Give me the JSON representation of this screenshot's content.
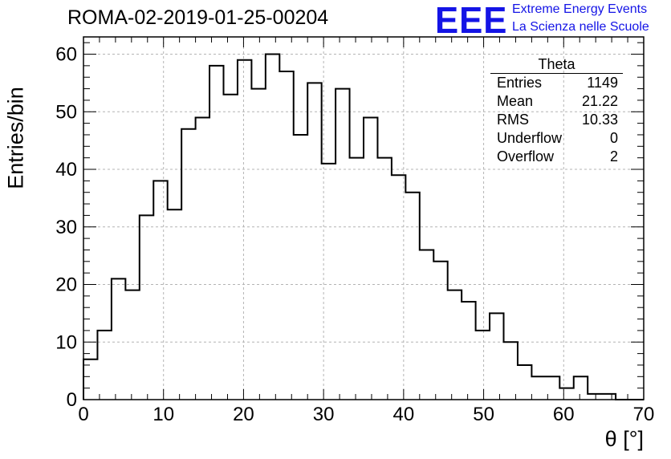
{
  "title": "ROMA-02-2019-01-25-00204",
  "logo": {
    "mark": "EEE",
    "line1": "Extreme Energy Events",
    "line2": "La Scienza nelle Scuole",
    "color": "#1414e6"
  },
  "stats_box": {
    "title": "Theta",
    "rows": [
      {
        "label": "Entries",
        "value": "1149"
      },
      {
        "label": "Mean",
        "value": "21.22"
      },
      {
        "label": "RMS",
        "value": "10.33"
      },
      {
        "label": "Underflow",
        "value": "0"
      },
      {
        "label": "Overflow",
        "value": "2"
      }
    ]
  },
  "chart_data": {
    "type": "histogram",
    "title": "ROMA-02-2019-01-25-00204",
    "xlabel": "θ [°]",
    "ylabel": "Entries/bin",
    "xlim": [
      0,
      70
    ],
    "ylim": [
      0,
      63
    ],
    "bin_width": 1.75,
    "bin_start": 0,
    "counts": [
      7,
      12,
      21,
      19,
      32,
      38,
      33,
      47,
      49,
      58,
      53,
      59,
      54,
      60,
      57,
      46,
      55,
      41,
      54,
      42,
      49,
      42,
      39,
      36,
      26,
      24,
      19,
      17,
      12,
      15,
      10,
      6,
      4,
      4,
      2,
      4,
      1,
      1,
      0,
      0
    ],
    "x_ticks": [
      0,
      10,
      20,
      30,
      40,
      50,
      60,
      70
    ],
    "y_ticks": [
      0,
      10,
      20,
      30,
      40,
      50,
      60
    ],
    "grid": true,
    "line_color": "#000000"
  }
}
